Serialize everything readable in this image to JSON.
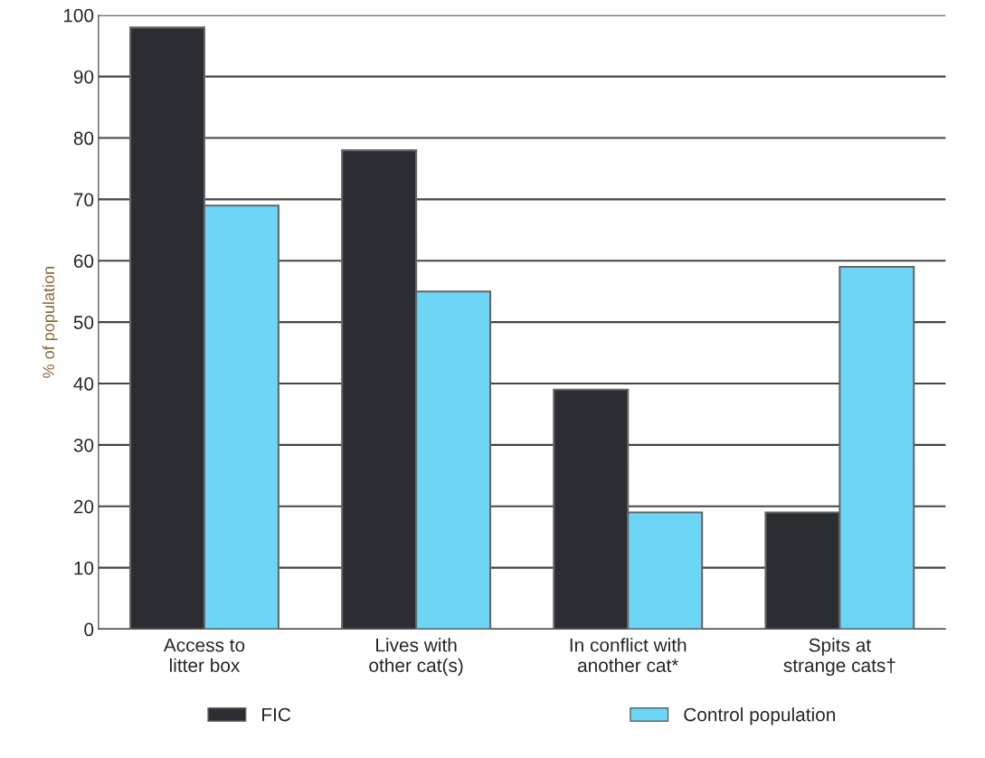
{
  "chart_data": {
    "type": "bar",
    "ylabel": "% of population",
    "categories": [
      "Access to\nlitter box",
      "Lives with\nother cat(s)",
      "In conflict with\nanother cat*",
      "Spits at\nstrange cats†"
    ],
    "series": [
      {
        "name": "FIC",
        "color": "#2b2d33",
        "values": [
          98,
          78,
          39,
          19
        ]
      },
      {
        "name": "Control population",
        "color": "#6dd5f5",
        "values": [
          69,
          55,
          19,
          59
        ]
      }
    ],
    "ylim": [
      0,
      100
    ],
    "yticks": [
      0,
      10,
      20,
      30,
      40,
      50,
      60,
      70,
      80,
      90,
      100
    ],
    "grid": "y",
    "legend": "bottom"
  }
}
